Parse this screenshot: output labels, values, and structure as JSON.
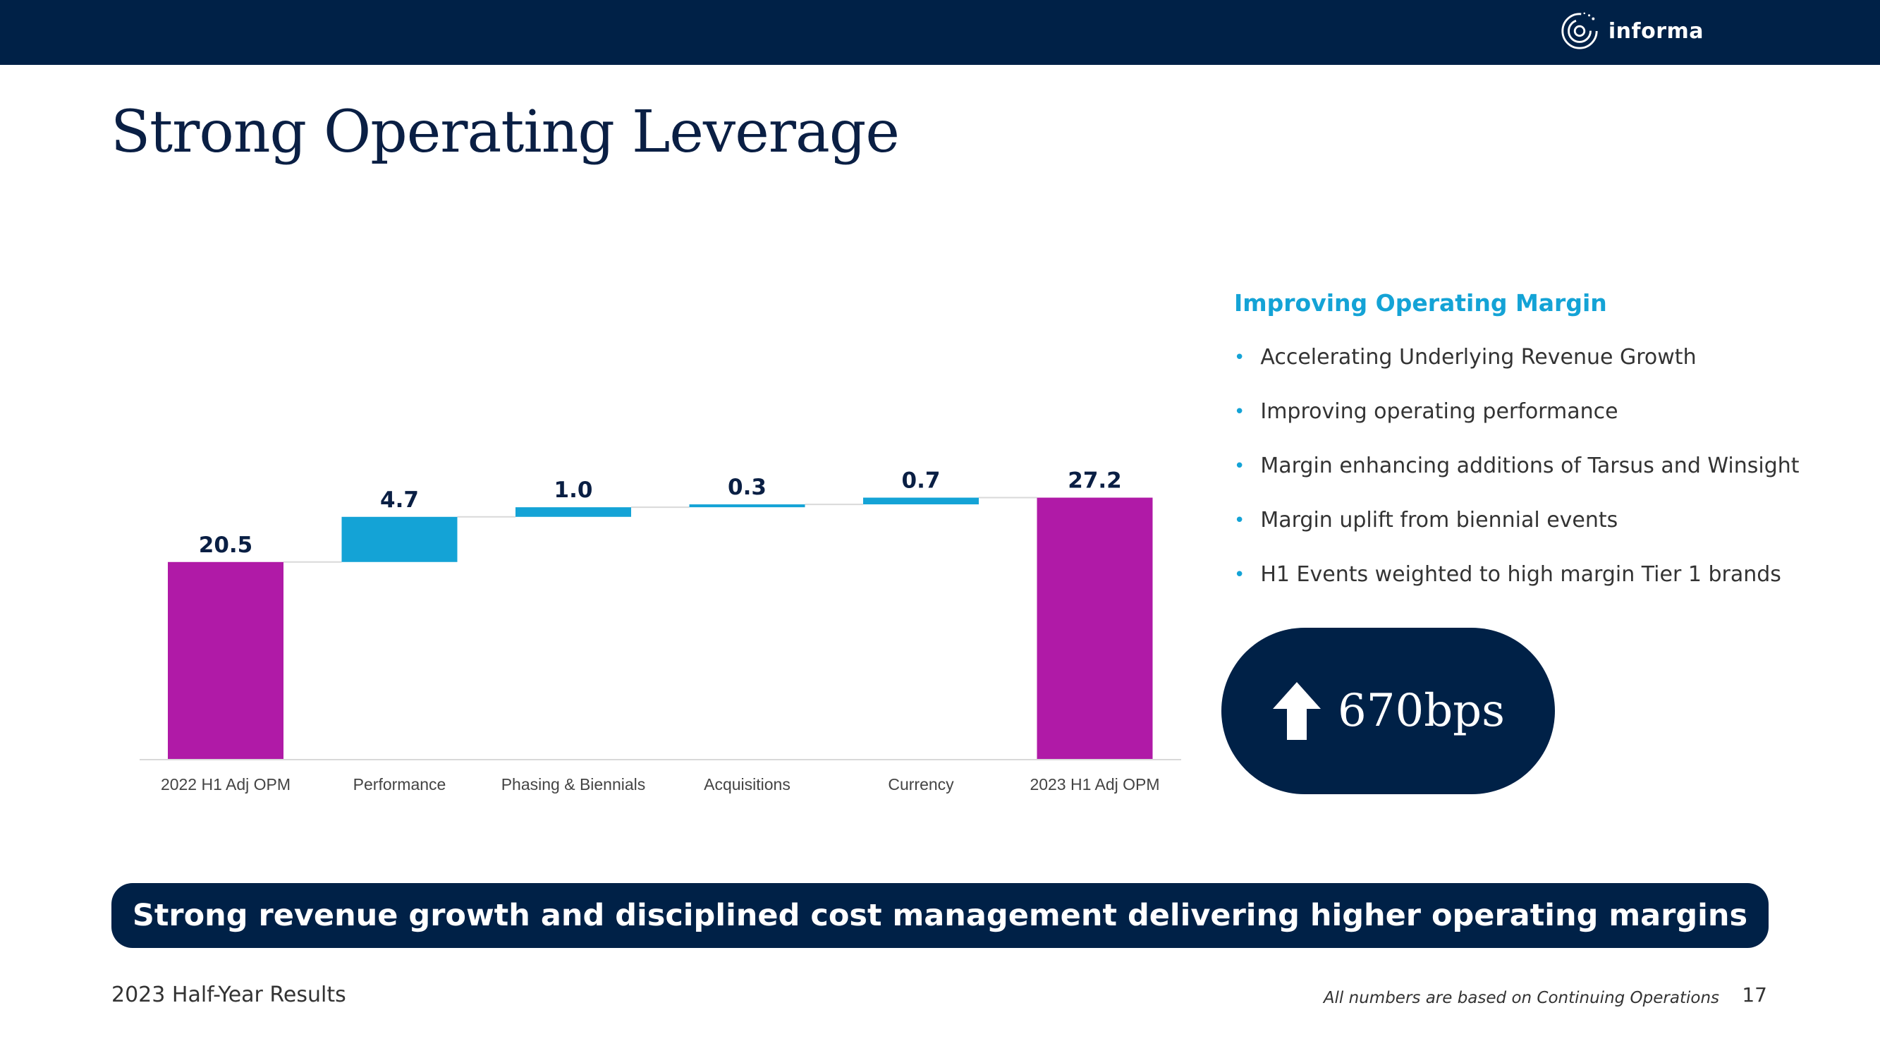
{
  "header": {
    "brand_name": "informa",
    "logo_icon": "informa-logo-icon",
    "bar_color": "#002147"
  },
  "page": {
    "title": "Strong Operating Leverage"
  },
  "chart_data": {
    "type": "bar",
    "subtype": "waterfall",
    "title": "",
    "xlabel": "",
    "ylabel": "",
    "ylim": [
      0,
      28
    ],
    "grid": false,
    "legend": "none",
    "categories": [
      "2022 H1 Adj OPM",
      "Performance",
      "Phasing & Biennials",
      "Acquisitions",
      "Currency",
      "2023 H1 Adj OPM"
    ],
    "values": [
      20.5,
      4.7,
      1.0,
      0.3,
      0.7,
      27.2
    ],
    "value_labels": [
      "20.5",
      "4.7",
      "1.0",
      "0.3",
      "0.7",
      "27.2"
    ],
    "bar_kinds": [
      "total",
      "delta",
      "delta",
      "delta",
      "delta",
      "total"
    ],
    "colors": {
      "total": "#b01aa7",
      "delta": "#14a3d6",
      "connector": "#d9d9d9",
      "axis": "#d9d9d9"
    }
  },
  "sidebar": {
    "heading": "Improving Operating Margin",
    "bullets": [
      "Accelerating Underlying Revenue Growth",
      "Improving operating performance",
      "Margin enhancing additions of Tarsus and Winsight",
      "Margin uplift from biennial events",
      "H1 Events weighted to high margin Tier 1 brands"
    ],
    "accent_color": "#14a3d6"
  },
  "kpi": {
    "icon": "arrow-up-icon",
    "value": "670bps"
  },
  "banner": {
    "text": "Strong revenue growth and disciplined cost management delivering higher operating margins"
  },
  "footer": {
    "left": "2023 Half-Year Results",
    "note": "All numbers are based on Continuing Operations",
    "page_number": "17"
  }
}
